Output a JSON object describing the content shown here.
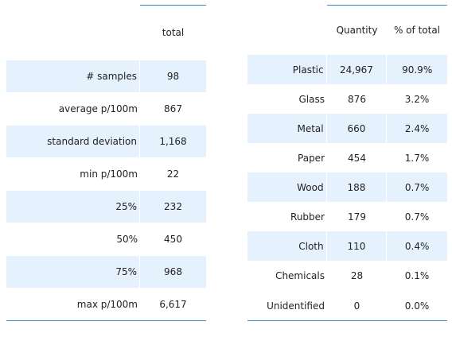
{
  "stats_table": {
    "header": "total",
    "rows": [
      {
        "label": "# samples",
        "value": "98"
      },
      {
        "label": "average p/100m",
        "value": "867"
      },
      {
        "label": "standard deviation",
        "value": "1,168"
      },
      {
        "label": "min p/100m",
        "value": "22"
      },
      {
        "label": "25%",
        "value": "232"
      },
      {
        "label": "50%",
        "value": "450"
      },
      {
        "label": "75%",
        "value": "968"
      },
      {
        "label": "max p/100m",
        "value": "6,617"
      }
    ]
  },
  "material_table": {
    "headers": {
      "quantity": "Quantity",
      "percent": "% of total"
    },
    "rows": [
      {
        "label": "Plastic",
        "quantity": "24,967",
        "percent": "90.9%"
      },
      {
        "label": "Glass",
        "quantity": "876",
        "percent": "3.2%"
      },
      {
        "label": "Metal",
        "quantity": "660",
        "percent": "2.4%"
      },
      {
        "label": "Paper",
        "quantity": "454",
        "percent": "1.7%"
      },
      {
        "label": "Wood",
        "quantity": "188",
        "percent": "0.7%"
      },
      {
        "label": "Rubber",
        "quantity": "179",
        "percent": "0.7%"
      },
      {
        "label": "Cloth",
        "quantity": "110",
        "percent": "0.4%"
      },
      {
        "label": "Chemicals",
        "quantity": "28",
        "percent": "0.1%"
      },
      {
        "label": "Unidentified",
        "quantity": "0",
        "percent": "0.0%"
      }
    ]
  },
  "colors": {
    "band": "#e6f1fe",
    "rule": "#3a88c9"
  }
}
